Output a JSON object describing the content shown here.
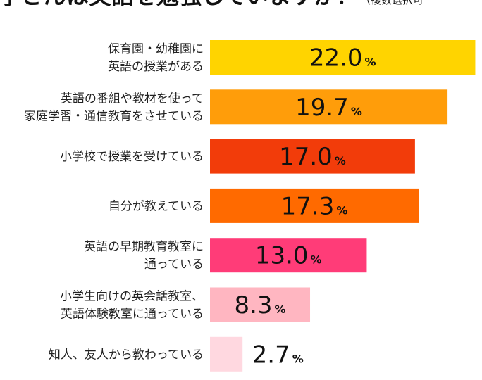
{
  "chart_data": {
    "type": "bar",
    "orientation": "horizontal",
    "title": "お子さんは英語を勉強していますか？",
    "title_note": "（複数選択可",
    "unit": "%",
    "categories": [
      [
        "保育園・幼稚園に",
        "英語の授業がある"
      ],
      [
        "英語の番組や教材を使って",
        "家庭学習・通信教育をさせている"
      ],
      [
        "小学校で授業を受けている"
      ],
      [
        "自分が教えている"
      ],
      [
        "英語の早期教育教室に",
        "通っている"
      ],
      [
        "小学生向けの英会話教室、",
        "英語体験教室に通っている"
      ],
      [
        "知人、友人から教わっている"
      ]
    ],
    "values": [
      22.0,
      19.7,
      17.0,
      17.3,
      13.0,
      8.3,
      2.7
    ],
    "value_labels": [
      "22.0",
      "19.7",
      "17.0",
      "17.3",
      "13.0",
      "8.3",
      "2.7"
    ],
    "colors": [
      "#FFD400",
      "#FF9D0A",
      "#F23C0A",
      "#FF6A00",
      "#FF3C78",
      "#FFB6C1",
      "#FFD8E0"
    ],
    "xlim": [
      0,
      22.5
    ],
    "grid": false,
    "legend": "none"
  }
}
